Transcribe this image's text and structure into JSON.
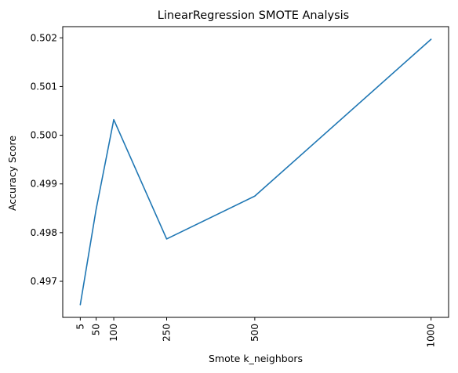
{
  "chart_data": {
    "type": "line",
    "title": "LinearRegression SMOTE Analysis",
    "xlabel": "Smote k_neighbors",
    "ylabel": "Accuracy Score",
    "xlim": [
      -44.75,
      1049.75
    ],
    "ylim": [
      0.49626,
      0.50223
    ],
    "x_ticks": [
      5,
      50,
      100,
      250,
      500,
      1000
    ],
    "x_tick_labels": [
      "5",
      "50",
      "100",
      "250",
      "500",
      "1000"
    ],
    "x_tick_rotation": 90,
    "y_ticks": [
      0.497,
      0.498,
      0.499,
      0.5,
      0.501,
      0.502
    ],
    "y_tick_labels": [
      "0.497",
      "0.498",
      "0.499",
      "0.500",
      "0.501",
      "0.502"
    ],
    "grid": false,
    "series": [
      {
        "color": "#1f77b4",
        "x": [
          5,
          50,
          100,
          250,
          500,
          1000
        ],
        "y": [
          0.49652,
          0.49848,
          0.50032,
          0.49787,
          0.49875,
          0.50197
        ]
      }
    ]
  }
}
